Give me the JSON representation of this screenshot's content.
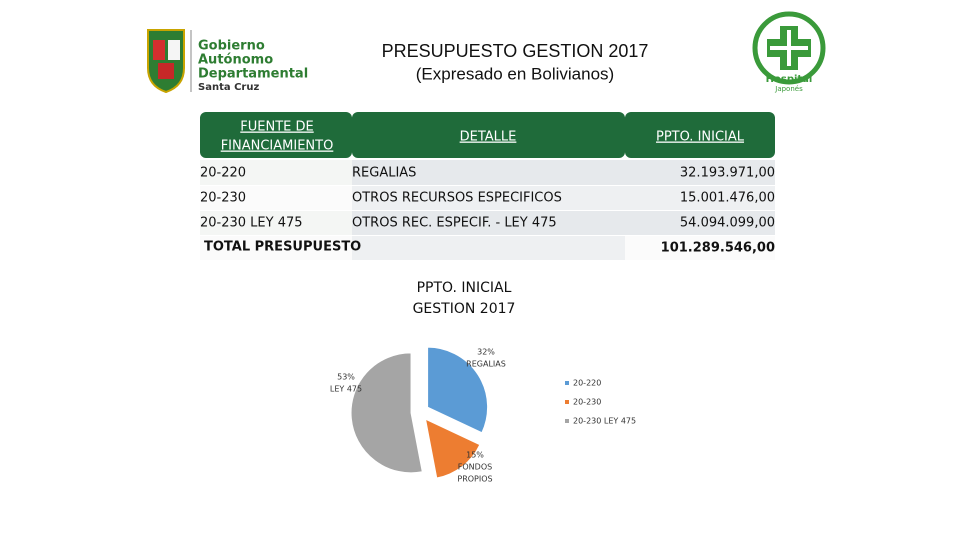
{
  "header": {
    "title": "PRESUPUESTO GESTION 2017",
    "subtitle": "(Expresado en Bolivianos)"
  },
  "logos": {
    "left": [
      "Gobierno",
      "Autónomo",
      "Departamental",
      "Santa Cruz"
    ],
    "right": [
      "Hospital",
      "Japonés"
    ]
  },
  "table": {
    "columns": [
      [
        "FUENTE DE",
        "FINANCIAMIENTO"
      ],
      "DETALLE",
      "PPTO. INICIAL"
    ],
    "rows": [
      [
        "20-220",
        "REGALIAS",
        "32.193.971,00"
      ],
      [
        "20-230",
        "OTROS RECURSOS ESPECIFICOS",
        "15.001.476,00"
      ],
      [
        "20-230 LEY 475",
        "OTROS REC. ESPECIF. - LEY 475",
        "54.094.099,00"
      ]
    ],
    "total": [
      "TOTAL  PRESUPUESTO",
      "101.289.546,00"
    ]
  },
  "chart_data": {
    "type": "pie",
    "title": "PPTO. INICIAL",
    "subtitle": "GESTION 2017",
    "categories": [
      "20-220",
      "20-230",
      "20-230 LEY 475"
    ],
    "values": [
      32,
      15,
      53
    ],
    "value_labels": [
      "32%",
      "15%",
      "53%"
    ],
    "slice_labels": [
      [
        "REGALIAS"
      ],
      [
        "FONDOS",
        "PROPIOS"
      ],
      [
        "LEY 475"
      ]
    ],
    "colors": [
      "#5b9bd5",
      "#ed7d31",
      "#a5a5a5"
    ],
    "legend": "right"
  }
}
